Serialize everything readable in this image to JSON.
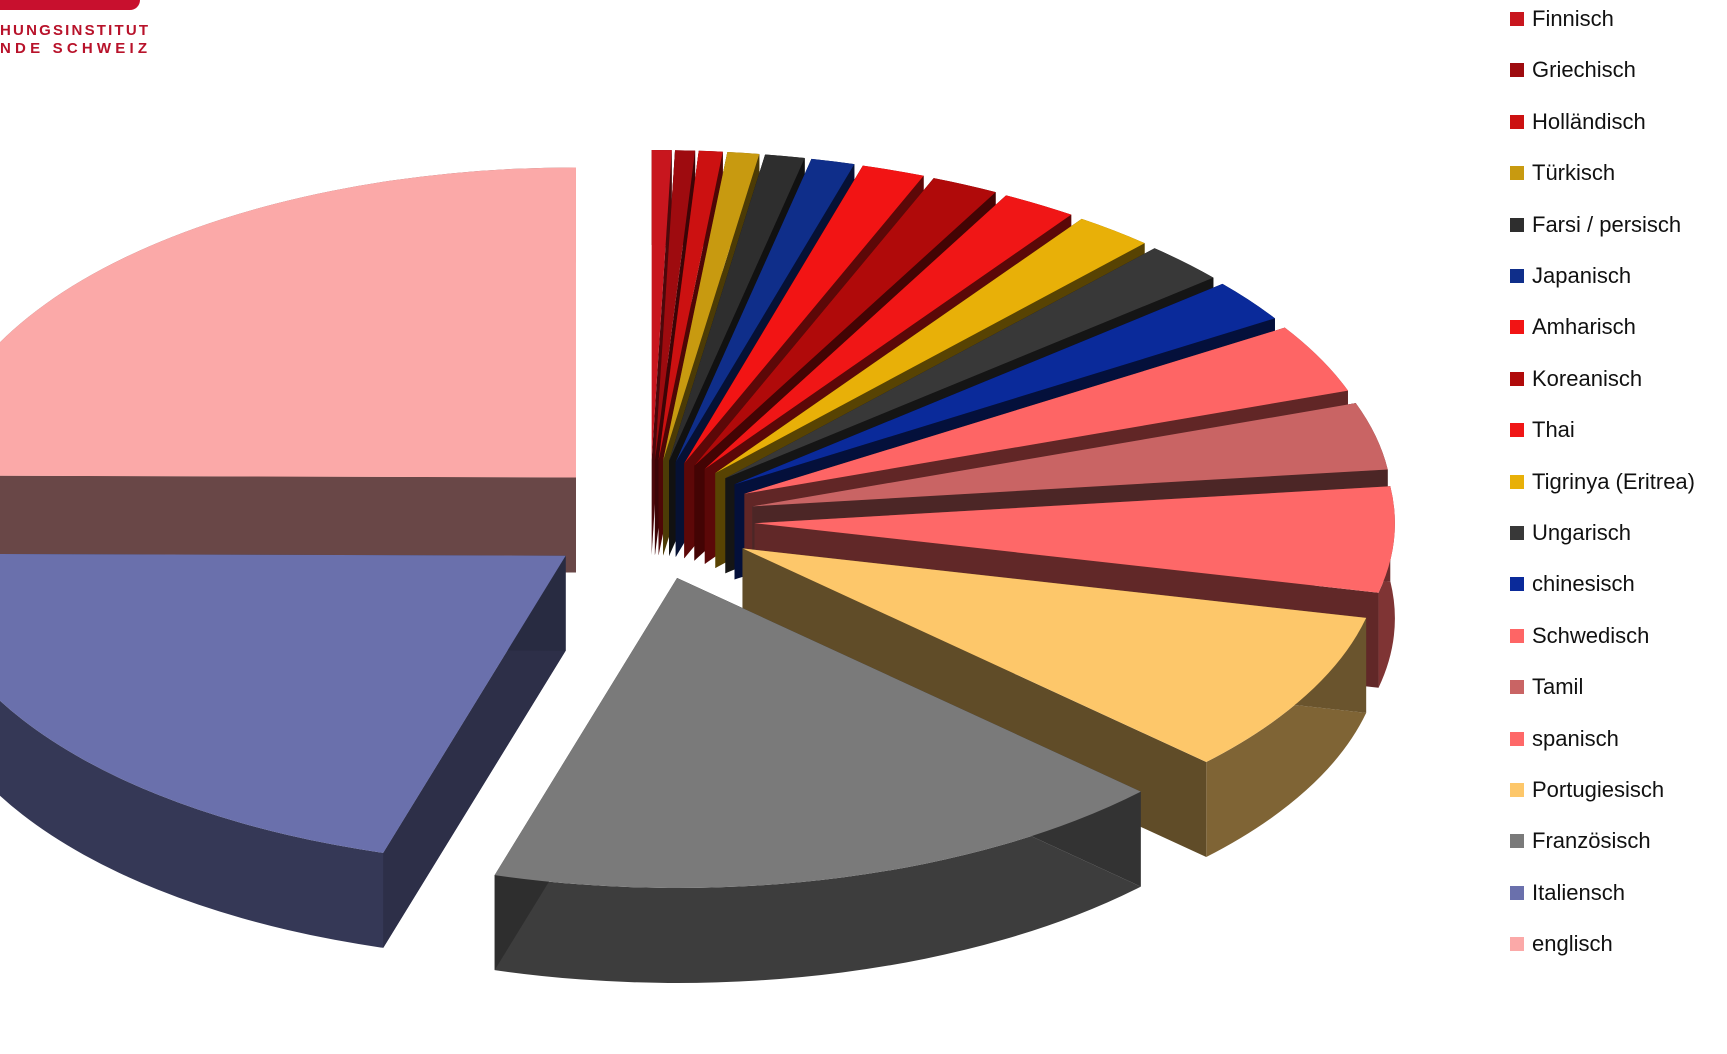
{
  "logo": {
    "line1": "HUNGSINSTITUT",
    "line2": "NDE SCHWEIZ"
  },
  "chart_data": {
    "type": "pie",
    "title": "",
    "style": "3d-exploded",
    "legend_position": "right",
    "categories": [
      "Finnisch",
      "Griechisch",
      "Holländisch",
      "Türkisch",
      "Farsi / persisch",
      "Japanisch",
      "Amharisch",
      "Koreanisch",
      "Thai",
      "Tigrinya (Eritrea)",
      "Ungarisch",
      "chinesisch",
      "Schwedisch",
      "Tamil",
      "spanisch",
      "Portugiesisch",
      "Französisch",
      "Italiensch",
      "englisch"
    ],
    "values": [
      0.5,
      0.5,
      0.6,
      0.8,
      1.0,
      1.1,
      1.6,
      1.7,
      1.9,
      2.0,
      2.1,
      2.2,
      3.6,
      3.5,
      5.5,
      8.5,
      17.5,
      20.5,
      24.9
    ],
    "colors": [
      "#c8161e",
      "#9e0b0f",
      "#cc1111",
      "#c89a10",
      "#2e2e2e",
      "#0f2e8a",
      "#f21414",
      "#b00a0a",
      "#f01616",
      "#e8b008",
      "#383838",
      "#0a2a9a",
      "#fe6565",
      "#c96464",
      "#fe6868",
      "#fdc76a",
      "#7a7a7a",
      "#6a70ac",
      "#fba9a8"
    ]
  }
}
